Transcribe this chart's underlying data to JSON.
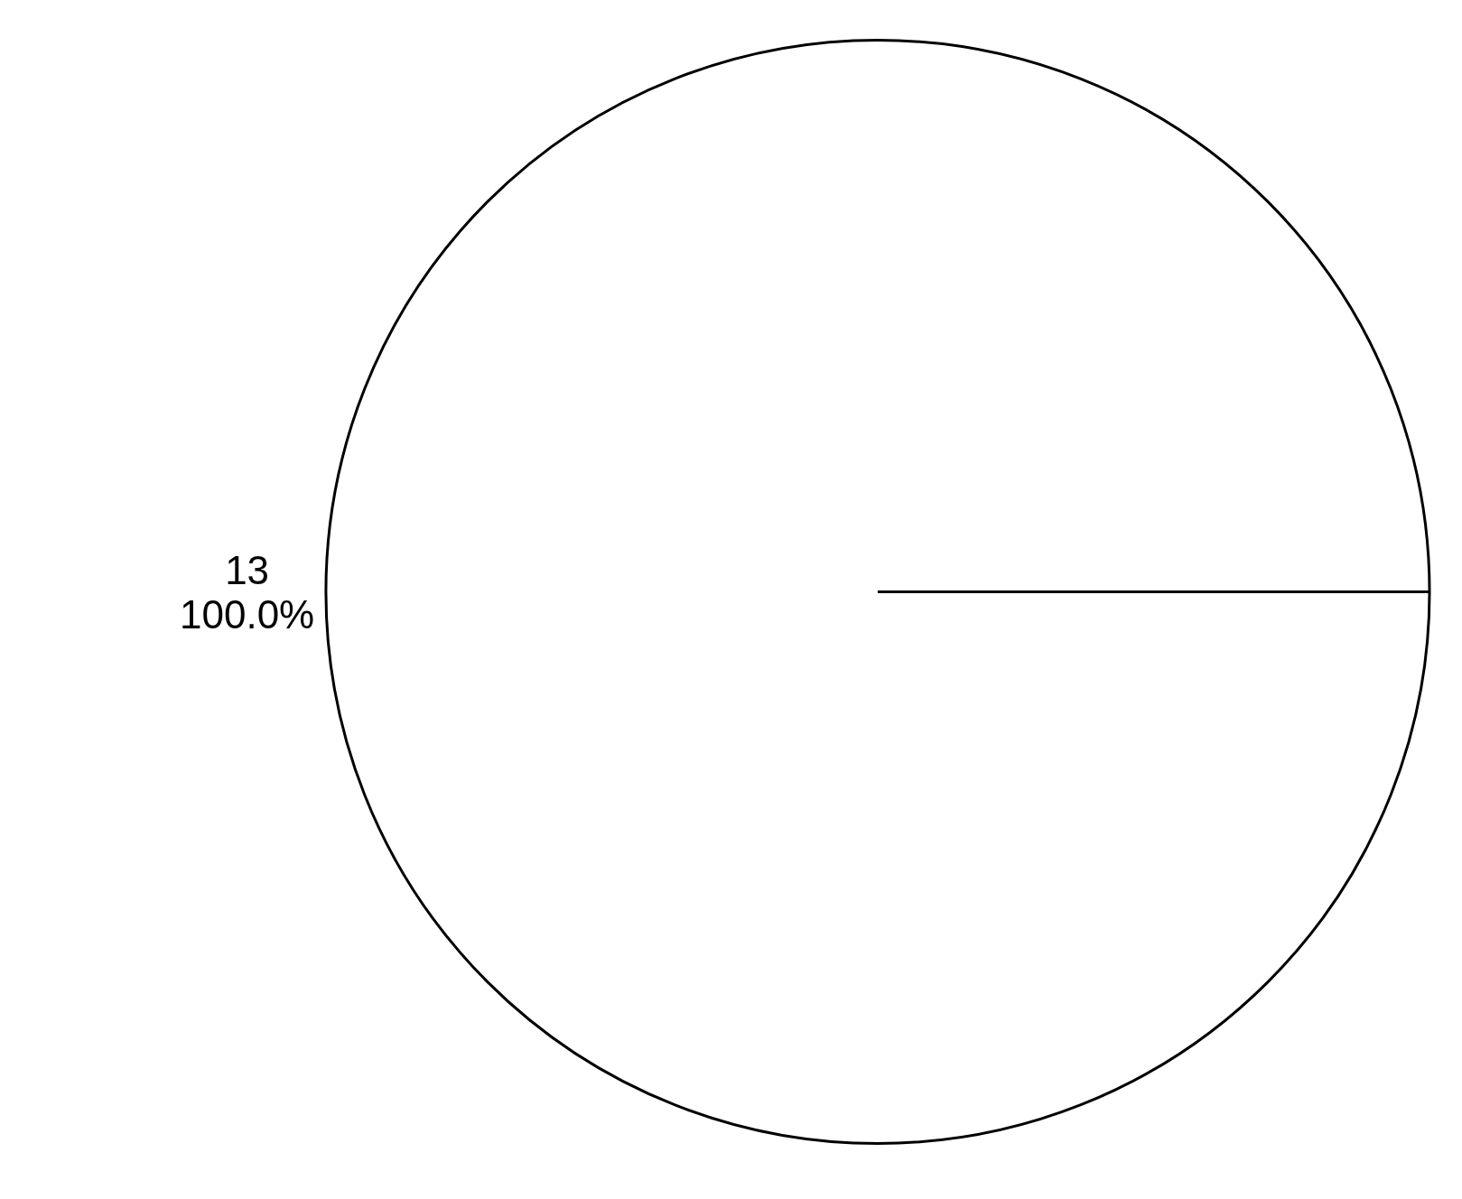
{
  "chart_data": {
    "type": "pie",
    "categories": [
      null
    ],
    "values": [
      13
    ],
    "colors": [
      "#ffffff"
    ],
    "data_labels": true,
    "annotations": [
      "100.0%"
    ]
  }
}
